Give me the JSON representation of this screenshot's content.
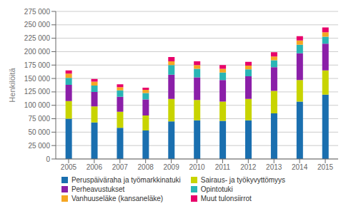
{
  "chart_data": {
    "type": "bar",
    "stacked": true,
    "grid": true,
    "legend": "bottom",
    "ylabel": "Henkilöitä",
    "categories": [
      "2005",
      "2006",
      "2007",
      "2008",
      "2009",
      "2010",
      "2011",
      "2012",
      "2013",
      "2014",
      "2015"
    ],
    "series": [
      {
        "name": "Peruspäiväraha ja työmarkkinatuki",
        "color": "#1a6faf",
        "values": [
          75000,
          68000,
          58000,
          53000,
          70000,
          72000,
          71000,
          72000,
          85000,
          107000,
          120000
        ]
      },
      {
        "name": "Sairaus- ja työkyvyttömyys",
        "color": "#c8d400",
        "values": [
          33000,
          30000,
          30000,
          28000,
          42000,
          38000,
          36000,
          40000,
          42000,
          40000,
          45000
        ]
      },
      {
        "name": "Perheavustukset",
        "color": "#8b1fa8",
        "values": [
          30000,
          27000,
          28000,
          30000,
          45000,
          42000,
          40000,
          42000,
          44000,
          50000,
          50000
        ]
      },
      {
        "name": "Opintotuki",
        "color": "#2ab5b5",
        "values": [
          13000,
          12000,
          12000,
          12000,
          18000,
          16000,
          14000,
          13000,
          13000,
          16000,
          13000
        ]
      },
      {
        "name": "Vanhuuseläke (kansaneläke)",
        "color": "#f5a623",
        "values": [
          8000,
          7000,
          6000,
          6000,
          7000,
          7000,
          7000,
          7000,
          7000,
          8000,
          8000
        ]
      },
      {
        "name": "Muut tulonsiirrot",
        "color": "#e8006a",
        "values": [
          6000,
          5000,
          5000,
          4000,
          8000,
          7000,
          7000,
          7000,
          8000,
          8000,
          9000
        ]
      }
    ],
    "ylim": [
      0,
      275000
    ],
    "yticks": [
      0,
      {
        "value": 25000,
        "label": "25 000"
      },
      {
        "value": 50000,
        "label": "50 000"
      },
      {
        "value": 75000,
        "label": "75 000"
      },
      {
        "value": 100000,
        "label": "100 000"
      },
      {
        "value": 125000,
        "label": "125 000"
      },
      {
        "value": 150000,
        "label": "150 000"
      },
      {
        "value": 175000,
        "label": "175 000"
      },
      {
        "value": 200000,
        "label": "200 000"
      },
      {
        "value": 225000,
        "label": "225 000"
      },
      {
        "value": 250000,
        "label": "250 000"
      },
      {
        "value": 275000,
        "label": "275 000"
      }
    ]
  }
}
